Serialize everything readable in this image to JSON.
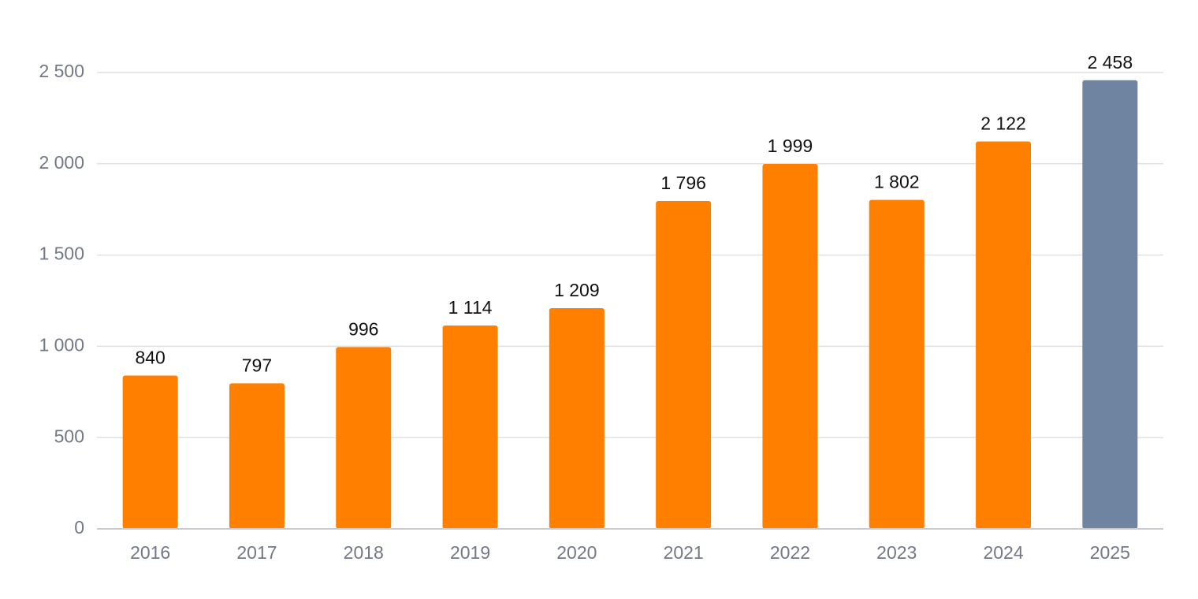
{
  "chart_data": {
    "type": "bar",
    "categories": [
      "2016",
      "2017",
      "2018",
      "2019",
      "2020",
      "2021",
      "2022",
      "2023",
      "2024",
      "2025"
    ],
    "values": [
      840,
      797,
      996,
      1114,
      1209,
      1796,
      1999,
      1802,
      2122,
      2458
    ],
    "value_labels": [
      "840",
      "797",
      "996",
      "1 114",
      "1 209",
      "1 796",
      "1 999",
      "1 802",
      "2 122",
      "2 458"
    ],
    "colors": [
      "#ff7f00",
      "#ff7f00",
      "#ff7f00",
      "#ff7f00",
      "#ff7f00",
      "#ff7f00",
      "#ff7f00",
      "#ff7f00",
      "#ff7f00",
      "#6e84a0"
    ],
    "ylim": [
      0,
      2500
    ],
    "yticks": [
      0,
      500,
      {
        "value": 1000,
        "label": "1 000"
      },
      {
        "value": 1500,
        "label": "1 500"
      },
      {
        "value": 2000,
        "label": "2 000"
      },
      {
        "value": 2500,
        "label": "2 500"
      }
    ],
    "grid": true
  }
}
